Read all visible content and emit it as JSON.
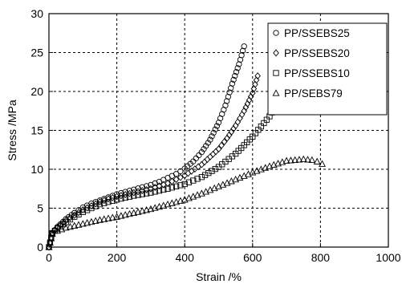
{
  "chart_data": {
    "type": "scatter",
    "title": "",
    "xlabel": "Strain /%",
    "ylabel": "Stress /MPa",
    "xlim": [
      0,
      1000
    ],
    "ylim": [
      0,
      30
    ],
    "x_ticks": [
      "0",
      "200",
      "400",
      "600",
      "800",
      "1000"
    ],
    "y_ticks": [
      "0",
      "5",
      "10",
      "15",
      "20",
      "25",
      "30"
    ],
    "grid": "dashed vertical and horizontal gridlines",
    "legend_position": "top-right",
    "series": [
      {
        "name": "PP/SSEBS25",
        "marker": "circle",
        "x": [
          0,
          10,
          25,
          50,
          75,
          100,
          125,
          150,
          175,
          200,
          225,
          250,
          275,
          300,
          325,
          350,
          375,
          400,
          425,
          450,
          475,
          500,
          520,
          540,
          560,
          575
        ],
        "y": [
          0,
          1.8,
          2.6,
          3.6,
          4.4,
          5.1,
          5.6,
          6.0,
          6.4,
          6.8,
          7.1,
          7.4,
          7.7,
          8.0,
          8.4,
          8.9,
          9.4,
          10.1,
          11.0,
          12.2,
          13.8,
          16.0,
          18.2,
          21.0,
          23.5,
          25.8
        ]
      },
      {
        "name": "PP/SSEBS20",
        "marker": "diamond",
        "x": [
          0,
          10,
          25,
          50,
          75,
          100,
          125,
          150,
          175,
          200,
          250,
          300,
          350,
          400,
          450,
          500,
          525,
          550,
          575,
          600,
          615
        ],
        "y": [
          0,
          1.8,
          2.5,
          3.4,
          4.1,
          4.8,
          5.3,
          5.8,
          6.2,
          6.5,
          7.0,
          7.5,
          8.2,
          9.2,
          10.6,
          12.6,
          14.0,
          15.6,
          17.5,
          19.8,
          22.0
        ]
      },
      {
        "name": "PP/SSEBS10",
        "marker": "square",
        "x": [
          0,
          10,
          25,
          50,
          75,
          100,
          125,
          150,
          200,
          250,
          300,
          350,
          400,
          450,
          500,
          550,
          600,
          625,
          650,
          665,
          680
        ],
        "y": [
          0,
          1.8,
          2.4,
          3.2,
          3.9,
          4.5,
          5.0,
          5.5,
          6.1,
          6.6,
          7.0,
          7.5,
          8.1,
          9.0,
          10.3,
          12.0,
          14.2,
          15.5,
          16.8,
          17.8,
          18.4
        ]
      },
      {
        "name": "PP/SEBS79",
        "marker": "triangle",
        "x": [
          0,
          10,
          25,
          50,
          100,
          150,
          200,
          250,
          300,
          350,
          400,
          450,
          500,
          550,
          600,
          650,
          700,
          750,
          775,
          790,
          805
        ],
        "y": [
          0,
          1.7,
          2.1,
          2.5,
          3.0,
          3.5,
          3.9,
          4.4,
          4.9,
          5.5,
          6.1,
          6.9,
          7.8,
          8.7,
          9.6,
          10.4,
          11.1,
          11.3,
          11.2,
          11.0,
          10.7
        ]
      }
    ]
  }
}
